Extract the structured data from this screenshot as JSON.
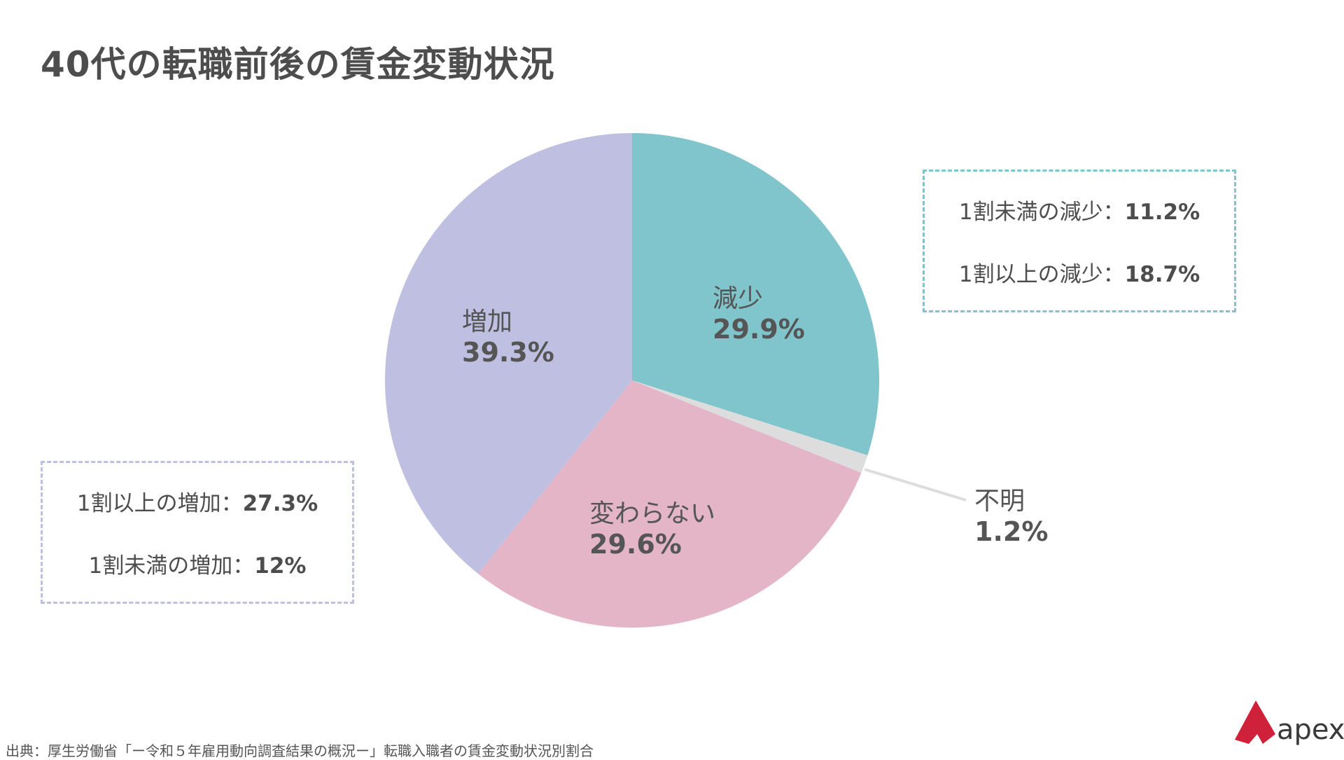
{
  "title": "40代の転職前後の賃金変動状況",
  "colors": {
    "decrease": "#80c4cc",
    "unknown": "#dddddd",
    "unchanged": "#e3b5c7",
    "increase": "#bebfe1"
  },
  "chart_data": {
    "type": "pie",
    "title": "40代の転職前後の賃金変動状況",
    "slices": [
      {
        "key": "decrease",
        "label": "減少",
        "value": 29.9,
        "value_label": "29.9%"
      },
      {
        "key": "unknown",
        "label": "不明",
        "value": 1.2,
        "value_label": "1.2%"
      },
      {
        "key": "unchanged",
        "label": "変わらない",
        "value": 29.6,
        "value_label": "29.6%"
      },
      {
        "key": "increase",
        "label": "増加",
        "value": 39.3,
        "value_label": "39.3%"
      }
    ],
    "start": "12 o'clock",
    "direction": "clockwise",
    "breakdowns": {
      "decrease": [
        {
          "label": "1割未満の減少：",
          "value": "11.2%"
        },
        {
          "label": "1割以上の減少：",
          "value": "18.7%"
        }
      ],
      "increase": [
        {
          "label": "1割以上の増加：",
          "value": "27.3%"
        },
        {
          "label": "1割未満の増加：",
          "value": "12%"
        }
      ]
    }
  },
  "source": "出典：厚生労働省「ー令和５年雇用動向調査結果の概況ー」転職入職者の賃金変動状況別割合",
  "logo": {
    "text": "apex",
    "color": "#d0213a"
  }
}
